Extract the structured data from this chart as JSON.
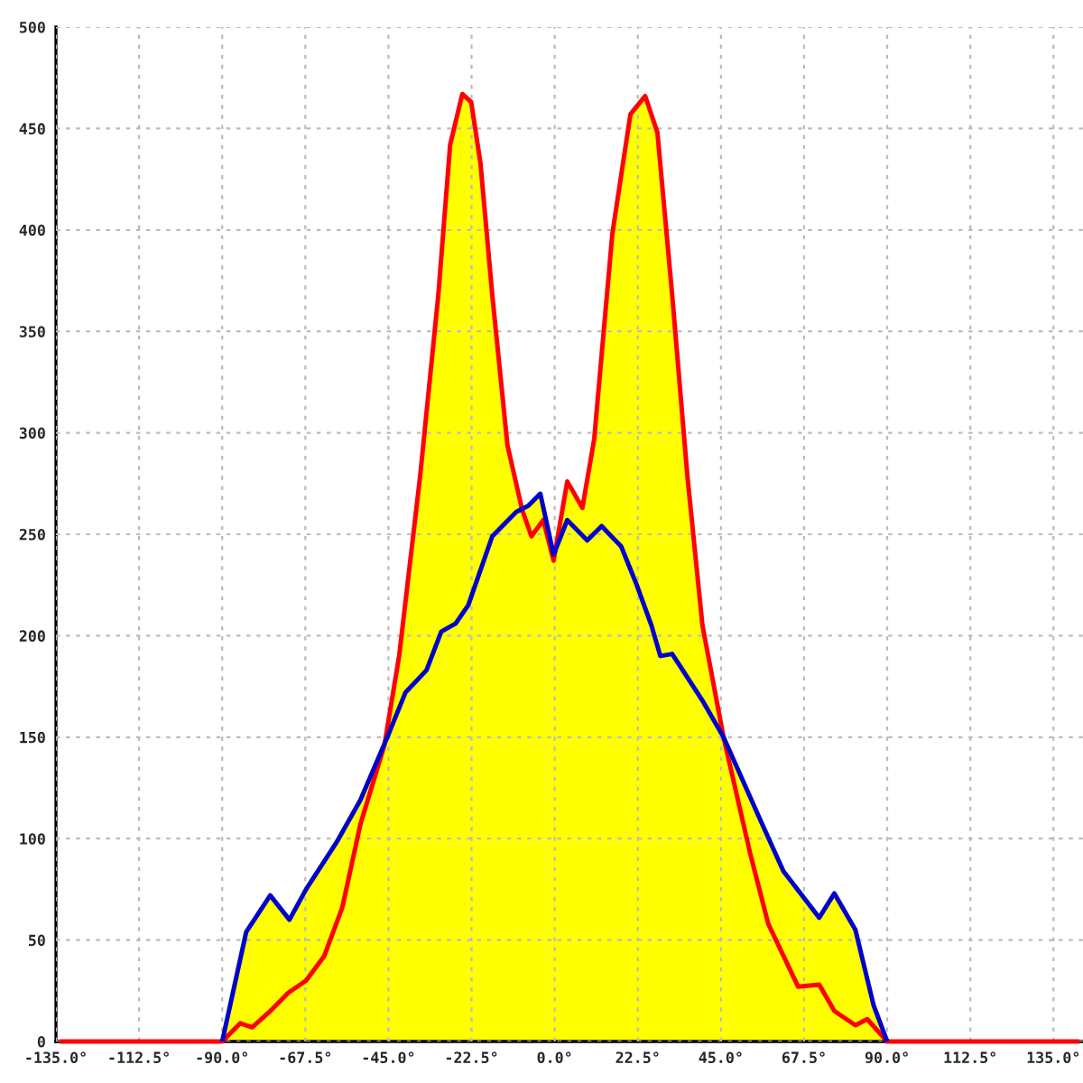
{
  "chart_data": {
    "type": "area",
    "series": [
      {
        "color": "#ffff00",
        "x": [
          -135,
          -90,
          -83.5,
          -77,
          -71.8,
          -67.3,
          -59.1,
          -52.6,
          -45.3,
          -42.1,
          -36.4,
          -31.5,
          -28.3,
          -25,
          -22.6,
          -20.1,
          -16.9,
          -12.8,
          -8.8,
          -7.2,
          -3.9,
          -0.3,
          3.4,
          7.5,
          10.7,
          15.6,
          20.5,
          24.5,
          27.8,
          31.8,
          35.9,
          40,
          45.7,
          56.2,
          61.9,
          71.6,
          75.7,
          81.4,
          86.3,
          90,
          143
        ],
        "values": [
          0,
          0,
          54,
          72,
          60,
          75,
          98,
          119,
          150,
          190,
          279,
          368,
          442,
          467,
          463,
          433,
          368,
          294,
          262,
          264,
          270,
          240,
          276,
          263,
          297,
          398,
          457,
          466,
          448,
          368,
          279,
          205,
          150,
          107,
          84,
          61,
          73,
          55,
          18,
          0,
          0
        ]
      },
      {
        "type": "line",
        "color": "#ff0000",
        "x": [
          -134,
          -90,
          -85.1,
          -81.9,
          -77,
          -72.1,
          -67.3,
          -62.4,
          -57.5,
          -52.6,
          -46.1,
          -42.1,
          -36.4,
          -31.5,
          -28.3,
          -25,
          -22.6,
          -20.1,
          -16.9,
          -12.8,
          -8.8,
          -6.3,
          -3.1,
          -0.3,
          3.4,
          7.5,
          10.7,
          15.6,
          20.5,
          24.5,
          27.8,
          31.8,
          35.9,
          40,
          45.7,
          53,
          57.8,
          65.9,
          71.6,
          75.7,
          81.4,
          84.6,
          90,
          142
        ],
        "values": [
          0,
          0,
          9,
          7,
          15,
          24,
          30,
          42,
          66,
          107,
          146,
          190,
          279,
          368,
          442,
          467,
          463,
          433,
          368,
          294,
          262,
          249,
          257,
          237,
          276,
          263,
          297,
          398,
          457,
          466,
          448,
          368,
          279,
          205,
          150,
          92,
          58,
          27,
          28,
          15,
          8,
          11,
          0,
          0
        ]
      },
      {
        "type": "line",
        "color": "#0000cc",
        "x": [
          -90,
          -83.5,
          -77,
          -71.8,
          -67.3,
          -59.1,
          -52.6,
          -45.3,
          -40.4,
          -34.7,
          -30.7,
          -26.8,
          -23.4,
          -16.9,
          -10.4,
          -7.2,
          -3.9,
          -0.3,
          3.4,
          8.8,
          12.7,
          18,
          22,
          26.2,
          28.6,
          31.8,
          40,
          45.7,
          56.2,
          61.9,
          71.6,
          75.7,
          81.4,
          86.3,
          90
        ],
        "values": [
          0,
          54,
          72,
          60,
          75,
          98,
          119,
          150,
          172,
          183,
          202,
          206,
          215,
          249,
          261,
          264,
          270,
          240,
          257,
          247,
          254,
          244,
          226,
          205,
          190,
          191,
          168,
          150,
          107,
          84,
          61,
          73,
          55,
          18,
          0
        ]
      }
    ],
    "xlim": [
      -135,
      143
    ],
    "xticks": [
      {
        "value": -135,
        "label": "-135.0°"
      },
      {
        "value": -112.5,
        "label": "-112.5°"
      },
      {
        "value": -90,
        "label": "-90.0°"
      },
      {
        "value": -67.5,
        "label": "-67.5°"
      },
      {
        "value": -45,
        "label": "-45.0°"
      },
      {
        "value": -22.5,
        "label": "-22.5°"
      },
      {
        "value": 0,
        "label": "0.0°"
      },
      {
        "value": 22.5,
        "label": "22.5°"
      },
      {
        "value": 45,
        "label": "45.0°"
      },
      {
        "value": 67.5,
        "label": "67.5°"
      },
      {
        "value": 90,
        "label": "90.0°"
      },
      {
        "value": 112.5,
        "label": "112.5°"
      },
      {
        "value": 135,
        "label": "135.0°"
      }
    ],
    "ylim": [
      0,
      500
    ],
    "yticks": [
      0,
      50,
      100,
      150,
      200,
      250,
      300,
      350,
      400,
      450,
      500
    ],
    "grid": true,
    "line_style": "solid",
    "marker": "none"
  }
}
